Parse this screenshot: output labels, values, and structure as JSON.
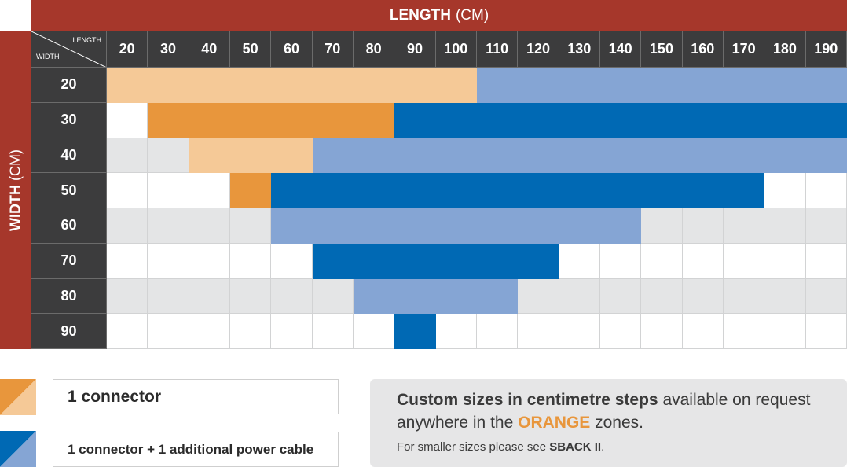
{
  "length_header": {
    "label": "LENGTH",
    "unit": "(CM)"
  },
  "width_header": {
    "label": "WIDTH",
    "unit": "(CM)"
  },
  "corner": {
    "length": "LENGTH",
    "width": "WIDTH"
  },
  "colors": {
    "header_red": "#a6372b",
    "header_dark": "#3c3c3d",
    "dark_orange": "#e8963c",
    "light_orange": "#f5c997",
    "dark_blue": "#0069b4",
    "light_blue": "#85a5d4",
    "empty_white": "#ffffff",
    "empty_grey": "#e4e5e6"
  },
  "chart_data": {
    "type": "table",
    "lengths": [
      "20",
      "30",
      "40",
      "50",
      "60",
      "70",
      "80",
      "90",
      "100",
      "110",
      "120",
      "130",
      "140",
      "150",
      "160",
      "170",
      "180",
      "190"
    ],
    "widths": [
      "20",
      "30",
      "40",
      "50",
      "60",
      "70",
      "80",
      "90"
    ],
    "rows": [
      {
        "width": "20",
        "cells": [
          "LO",
          "LO",
          "LO",
          "LO",
          "LO",
          "LO",
          "LO",
          "LO",
          "LO",
          "LB",
          "LB",
          "LB",
          "LB",
          "LB",
          "LB",
          "LB",
          "LB",
          "LB"
        ]
      },
      {
        "width": "30",
        "cells": [
          "-",
          "DO",
          "DO",
          "DO",
          "DO",
          "DO",
          "DO",
          "DB",
          "DB",
          "DB",
          "DB",
          "DB",
          "DB",
          "DB",
          "DB",
          "DB",
          "DB",
          "DB"
        ]
      },
      {
        "width": "40",
        "cells": [
          "-",
          "-",
          "LO",
          "LO",
          "LO",
          "LB",
          "LB",
          "LB",
          "LB",
          "LB",
          "LB",
          "LB",
          "LB",
          "LB",
          "LB",
          "LB",
          "LB",
          "LB"
        ]
      },
      {
        "width": "50",
        "cells": [
          "-",
          "-",
          "-",
          "DO",
          "DB",
          "DB",
          "DB",
          "DB",
          "DB",
          "DB",
          "DB",
          "DB",
          "DB",
          "DB",
          "DB",
          "DB",
          "-",
          "-"
        ]
      },
      {
        "width": "60",
        "cells": [
          "-",
          "-",
          "-",
          "-",
          "LB",
          "LB",
          "LB",
          "LB",
          "LB",
          "LB",
          "LB",
          "LB",
          "LB",
          "-",
          "-",
          "-",
          "-",
          "-"
        ]
      },
      {
        "width": "70",
        "cells": [
          "-",
          "-",
          "-",
          "-",
          "-",
          "DB",
          "DB",
          "DB",
          "DB",
          "DB",
          "DB",
          "-",
          "-",
          "-",
          "-",
          "-",
          "-",
          "-"
        ]
      },
      {
        "width": "80",
        "cells": [
          "-",
          "-",
          "-",
          "-",
          "-",
          "-",
          "LB",
          "LB",
          "LB",
          "LB",
          "-",
          "-",
          "-",
          "-",
          "-",
          "-",
          "-",
          "-"
        ]
      },
      {
        "width": "90",
        "cells": [
          "-",
          "-",
          "-",
          "-",
          "-",
          "-",
          "-",
          "DB",
          "-",
          "-",
          "-",
          "-",
          "-",
          "-",
          "-",
          "-",
          "-",
          "-"
        ]
      }
    ],
    "legend": {
      "orange": "1 connector",
      "blue": "1 connector + 1 additional power cable"
    }
  },
  "legend": {
    "orange_label": "1 connector",
    "blue_label": "1 connector + 1 additional power cable"
  },
  "note": {
    "bold_part": "Custom sizes in centimetre steps",
    "mid_part": " available on request anywhere in the ",
    "orange_word": "ORANGE",
    "end_part": " zones.",
    "smaller_prefix": "For smaller sizes please see ",
    "smaller_link": "SBACK II",
    "smaller_suffix": "."
  }
}
